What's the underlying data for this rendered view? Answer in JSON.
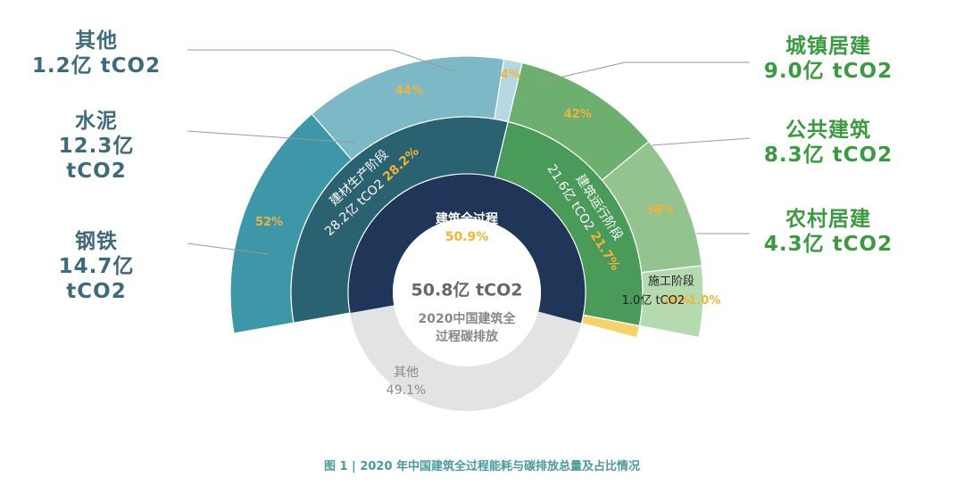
{
  "chart_data": {
    "type": "sunburst",
    "center": {
      "value": "50.8亿 tCO2",
      "title": "2020中国建筑全过程碳排放"
    },
    "inner": {
      "label": "建筑全过程",
      "share": "50.9%",
      "percent": 50.9,
      "color": "#1f3658",
      "other": {
        "label": "其他",
        "share": "49.1%",
        "percent": 49.1,
        "color": "#e3e3e3"
      }
    },
    "middle": [
      {
        "label": "建材生产阶段",
        "value": "28.2亿 tCO2",
        "share": "28.2%",
        "percent": 28.2,
        "color": "#2b6272"
      },
      {
        "label": "建筑运行阶段",
        "value": "21.6亿 tCO2",
        "share": "21.7%",
        "percent": 21.7,
        "color": "#4a9a59"
      },
      {
        "label": "施工阶段",
        "value": "1.0亿 tCO2",
        "share": "1.0%",
        "percent": 1.0,
        "color": "#f4d36d"
      }
    ],
    "outer": [
      {
        "parent": "建材生产阶段",
        "label": "钢铁",
        "value": "14.7亿 tCO2",
        "share": "52%",
        "percent": 52,
        "color": "#3d97a8"
      },
      {
        "parent": "建材生产阶段",
        "label": "水泥",
        "value": "12.3亿 tCO2",
        "share": "44%",
        "percent": 44,
        "color": "#7db8c7"
      },
      {
        "parent": "建材生产阶段",
        "label": "其他",
        "value": "1.2亿 tCO2",
        "share": "4%",
        "percent": 4,
        "color": "#b6d8e2"
      },
      {
        "parent": "建筑运行阶段",
        "label": "城镇居建",
        "value": "9.0亿 tCO2",
        "share": "42%",
        "percent": 42,
        "color": "#6caf6e"
      },
      {
        "parent": "建筑运行阶段",
        "label": "公共建筑",
        "value": "8.3亿 tCO2",
        "share": "38%",
        "percent": 38,
        "color": "#93c48f"
      },
      {
        "parent": "建筑运行阶段",
        "label": "农村居建",
        "value": "4.3亿 tCO2",
        "share": "20%",
        "percent": 20,
        "color": "#b6dab0"
      }
    ],
    "caption": "图 1 | 2020 年中国建筑全过程能耗与碳排放总量及占比情况"
  },
  "colors": {
    "share_text": "#f0b33c",
    "left_label": "#3f6a7c",
    "right_label": "#3b9a3f",
    "leader_line": "#9a9a9a"
  }
}
